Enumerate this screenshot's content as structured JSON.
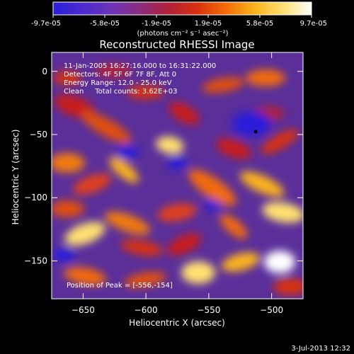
{
  "colorbar": {
    "tick_labels": [
      "-9.7e-05",
      "-5.8e-05",
      "-1.9e-05",
      "1.9e-05",
      "5.8e-05",
      "9.7e-05"
    ],
    "units": "(photons cm⁻² s⁻¹ asec⁻²)",
    "range": [
      -9.7e-05,
      9.7e-05
    ],
    "stops": [
      "#2a1fd8",
      "#4a2ad0",
      "#6a34b8",
      "#8a2d80",
      "#b0203a",
      "#d8300e",
      "#f26a08",
      "#fbb21a",
      "#ffe070",
      "#ffffff"
    ]
  },
  "plot": {
    "title": "Reconstructed RHESSI Image",
    "xlabel": "Heliocentric X (arcsec)",
    "ylabel": "Heliocentric Y (arcsec)",
    "x_ticks": [
      "-650",
      "-600",
      "-550",
      "-500"
    ],
    "y_ticks": [
      "0",
      "-50",
      "-100",
      "-150"
    ],
    "xlim": [
      -675,
      -475
    ],
    "ylim": [
      -180,
      15
    ]
  },
  "info": {
    "time": "11-Jan-2005 16:27:16.000 to 16:31:22.000",
    "detectors": "Detectors: 4F 5F 6F 7F 8F, Att 0",
    "energy": "Energy Range: 12.0 - 25.0 keV",
    "clean": "Clean     Total counts: 3.62E+03",
    "peak": "Position of Peak = [-556,-154]"
  },
  "footer": {
    "timestamp": "3-Jul-2013 12:32"
  }
}
